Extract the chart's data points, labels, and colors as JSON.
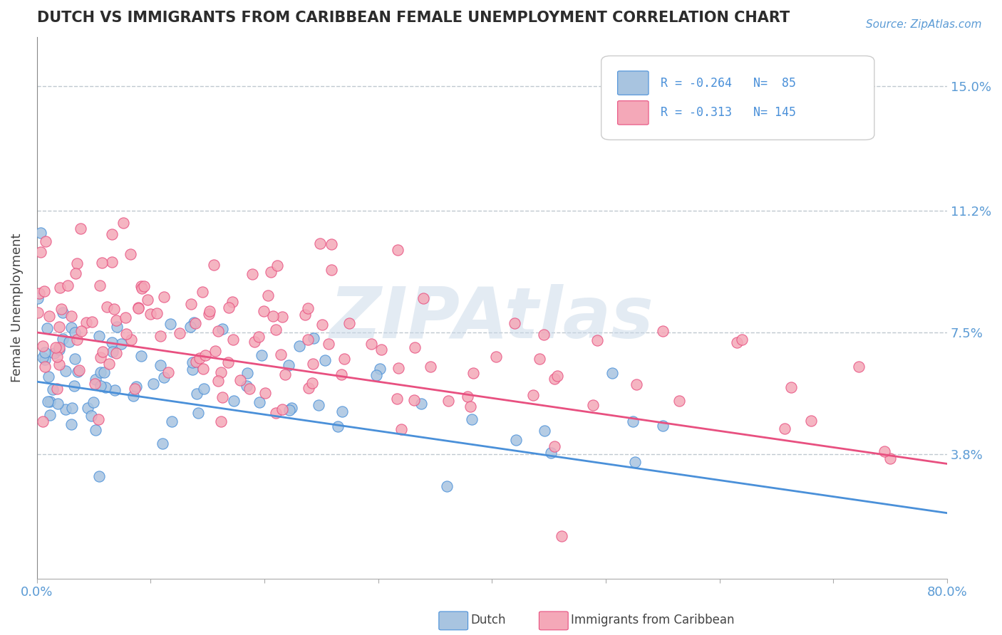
{
  "title": "DUTCH VS IMMIGRANTS FROM CARIBBEAN FEMALE UNEMPLOYMENT CORRELATION CHART",
  "source": "Source: ZipAtlas.com",
  "xlabel": "",
  "ylabel": "Female Unemployment",
  "xlim": [
    0.0,
    80.0
  ],
  "ylim": [
    0.0,
    16.5
  ],
  "yticks": [
    3.8,
    7.5,
    11.2,
    15.0
  ],
  "xticks": [
    0.0,
    10.0,
    20.0,
    30.0,
    40.0,
    50.0,
    60.0,
    70.0,
    80.0
  ],
  "xtick_labels": [
    "0.0%",
    "",
    "",
    "",
    "",
    "",
    "",
    "",
    "80.0%"
  ],
  "ytick_labels": [
    "3.8%",
    "7.5%",
    "11.2%",
    "15.0%"
  ],
  "series1_name": "Dutch",
  "series1_color": "#a8c4e0",
  "series1_line_color": "#4a90d9",
  "series1_R": -0.264,
  "series1_N": 85,
  "series2_name": "Immigrants from Caribbean",
  "series2_color": "#f4a8b8",
  "series2_line_color": "#e85080",
  "series2_R": -0.313,
  "series2_N": 145,
  "title_color": "#2c2c2c",
  "axis_color": "#5b9bd5",
  "watermark": "ZIPAtlas",
  "watermark_color": "#c8d8e8",
  "background_color": "#ffffff",
  "grid_color": "#c0c8d0",
  "legend_R_color": "#4a90d9",
  "seed": 42
}
